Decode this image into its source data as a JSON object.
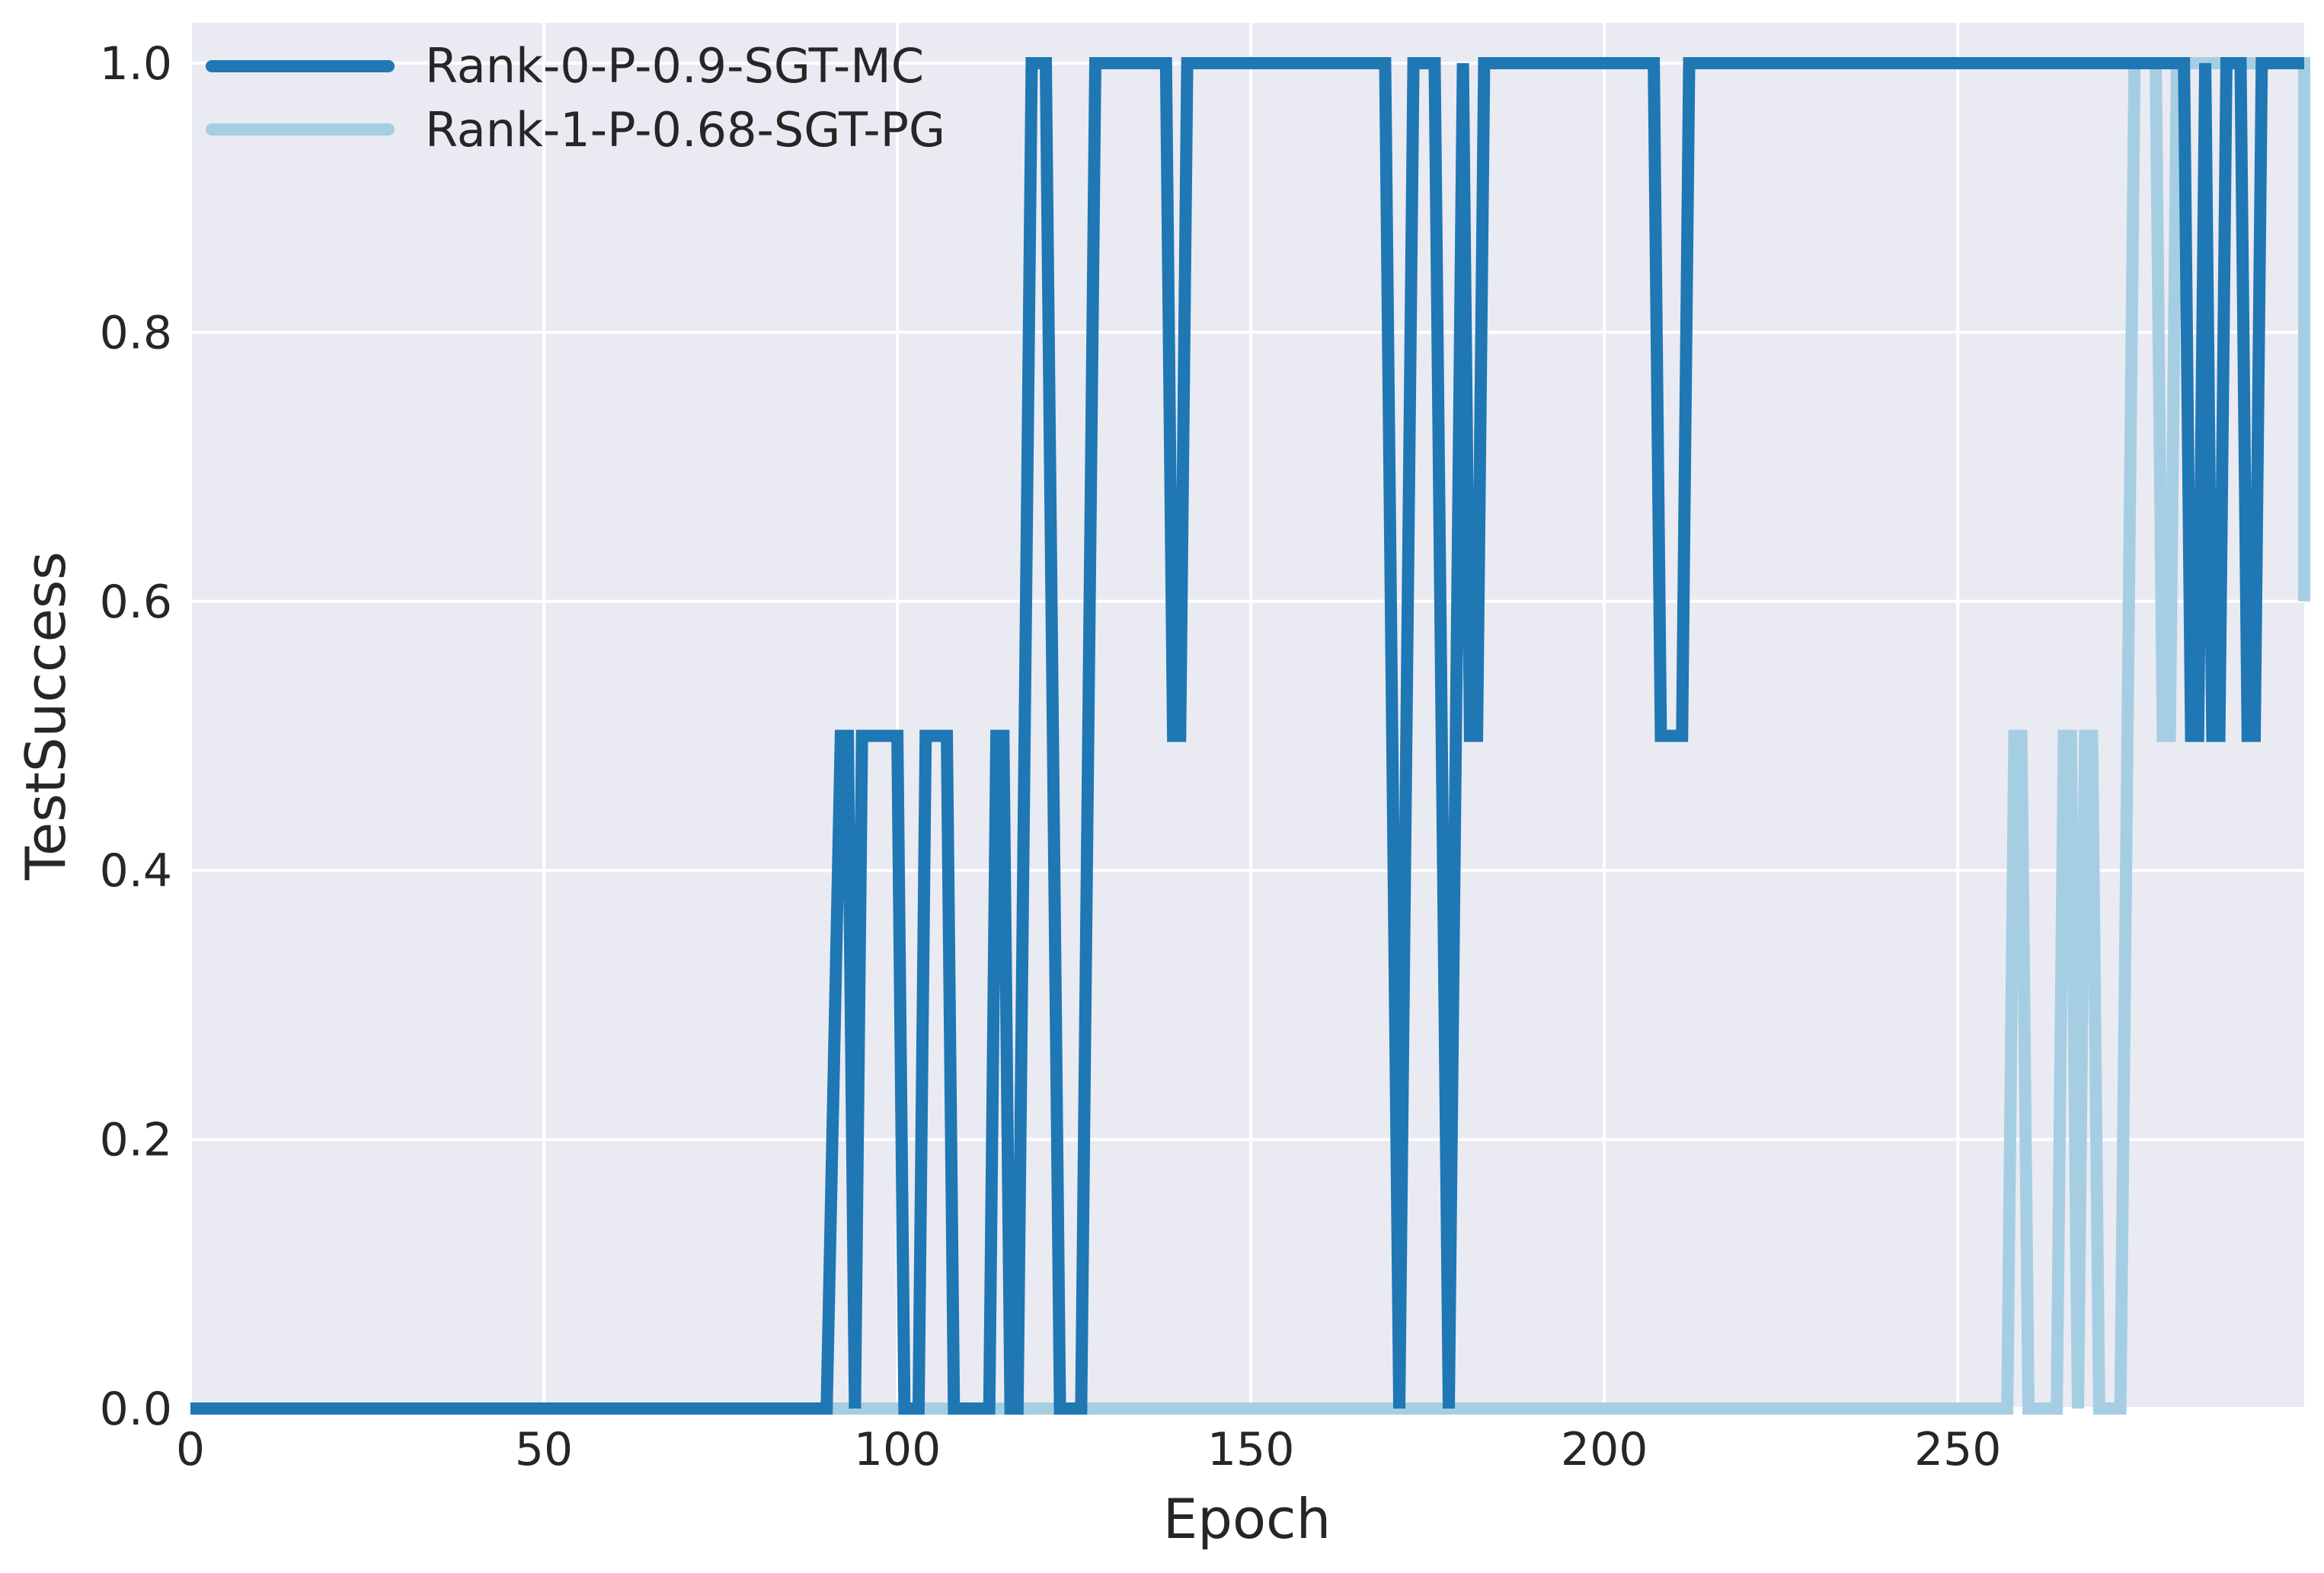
{
  "chart_data": {
    "type": "line",
    "xlabel": "Epoch",
    "ylabel": "TestSuccess",
    "xlim": [
      0,
      299
    ],
    "ylim": [
      0,
      1.03
    ],
    "xticks": [
      0,
      50,
      100,
      150,
      200,
      250
    ],
    "yticks": [
      0.0,
      0.2,
      0.4,
      0.6,
      0.8,
      1.0
    ],
    "xtick_labels": [
      "0",
      "50",
      "100",
      "150",
      "200",
      "250"
    ],
    "ytick_labels": [
      "0.0",
      "0.2",
      "0.4",
      "0.6",
      "0.8",
      "1.0"
    ],
    "grid": true,
    "legend_position": "top-left",
    "background": "#eaeaf2",
    "series": [
      {
        "name": "Rank-0-P-0.9-SGT-MC",
        "color": "#1f77b4",
        "points": [
          [
            0,
            0
          ],
          [
            90,
            0
          ],
          [
            92,
            0.5
          ],
          [
            93,
            0.5
          ],
          [
            94,
            0
          ],
          [
            95,
            0.5
          ],
          [
            100,
            0.5
          ],
          [
            101,
            0
          ],
          [
            103,
            0
          ],
          [
            104,
            0.5
          ],
          [
            107,
            0.5
          ],
          [
            108,
            0
          ],
          [
            113,
            0
          ],
          [
            114,
            0.5
          ],
          [
            115,
            0.5
          ],
          [
            116,
            0
          ],
          [
            117,
            0
          ],
          [
            119,
            1
          ],
          [
            121,
            1
          ],
          [
            123,
            0
          ],
          [
            126,
            0
          ],
          [
            128,
            1
          ],
          [
            138,
            1
          ],
          [
            139,
            0.5
          ],
          [
            140,
            0.5
          ],
          [
            141,
            1
          ],
          [
            169,
            1
          ],
          [
            171,
            0
          ],
          [
            173,
            1
          ],
          [
            176,
            1
          ],
          [
            178,
            0
          ],
          [
            180,
            1
          ],
          [
            181,
            0.5
          ],
          [
            182,
            0.5
          ],
          [
            183,
            1
          ],
          [
            207,
            1
          ],
          [
            208,
            0.5
          ],
          [
            211,
            0.5
          ],
          [
            212,
            1
          ],
          [
            282,
            1
          ],
          [
            283,
            0.5
          ],
          [
            284,
            0.5
          ],
          [
            285,
            1
          ],
          [
            286,
            0.5
          ],
          [
            287,
            0.5
          ],
          [
            288,
            1
          ],
          [
            290,
            1
          ],
          [
            291,
            0.5
          ],
          [
            292,
            0.5
          ],
          [
            293,
            1
          ],
          [
            299,
            1
          ]
        ]
      },
      {
        "name": "Rank-1-P-0.68-SGT-PG",
        "color": "#a6cee3",
        "points": [
          [
            0,
            0
          ],
          [
            257,
            0
          ],
          [
            258,
            0.5
          ],
          [
            259,
            0.5
          ],
          [
            260,
            0
          ],
          [
            264,
            0
          ],
          [
            265,
            0.5
          ],
          [
            266,
            0.5
          ],
          [
            267,
            0
          ],
          [
            268,
            0.5
          ],
          [
            269,
            0.5
          ],
          [
            270,
            0
          ],
          [
            273,
            0
          ],
          [
            275,
            1
          ],
          [
            278,
            1
          ],
          [
            279,
            0.5
          ],
          [
            280,
            0.5
          ],
          [
            281,
            1
          ],
          [
            299,
            1
          ],
          [
            299,
            0.6
          ]
        ]
      }
    ]
  }
}
